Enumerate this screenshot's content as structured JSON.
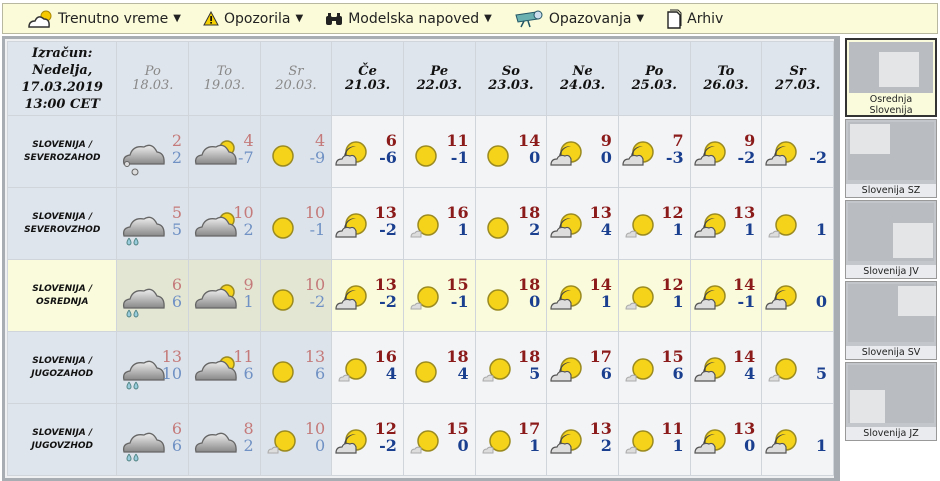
{
  "nav": [
    {
      "label": "Trenutno vreme",
      "icon": "cloud-sun-icon",
      "dropdown": true
    },
    {
      "label": "Opozorila",
      "icon": "warning-icon",
      "dropdown": true
    },
    {
      "label": "Modelska napoved",
      "icon": "binoculars-icon",
      "dropdown": true
    },
    {
      "label": "Opazovanja",
      "icon": "telescope-icon",
      "dropdown": true
    },
    {
      "label": "Arhiv",
      "icon": "document-icon",
      "dropdown": false
    }
  ],
  "calc": {
    "line1": "Izračun:",
    "line2": "Nedelja,",
    "line3": "17.03.2019",
    "line4": "13:00 CET"
  },
  "days": [
    {
      "day": "Po",
      "date": "18.03.",
      "past": true
    },
    {
      "day": "To",
      "date": "19.03.",
      "past": true
    },
    {
      "day": "Sr",
      "date": "20.03.",
      "past": true
    },
    {
      "day": "Če",
      "date": "21.03.",
      "past": false
    },
    {
      "day": "Pe",
      "date": "22.03.",
      "past": false
    },
    {
      "day": "So",
      "date": "23.03.",
      "past": false
    },
    {
      "day": "Ne",
      "date": "24.03.",
      "past": false
    },
    {
      "day": "Po",
      "date": "25.03.",
      "past": false
    },
    {
      "day": "To",
      "date": "26.03.",
      "past": false
    },
    {
      "day": "Sr",
      "date": "27.03.",
      "past": false
    }
  ],
  "rows": [
    {
      "line1": "SLOVENIJA /",
      "line2": "SEVEROZAHOD",
      "highlight": false,
      "cells": [
        {
          "icon": "cloud-snow",
          "max": "2",
          "min": "2"
        },
        {
          "icon": "cloud-sun",
          "max": "4",
          "min": "-7"
        },
        {
          "icon": "sun",
          "max": "4",
          "min": "-9"
        },
        {
          "icon": "partly-cloudy",
          "max": "6",
          "min": "-6"
        },
        {
          "icon": "sun",
          "max": "11",
          "min": "-1"
        },
        {
          "icon": "sun",
          "max": "14",
          "min": "0"
        },
        {
          "icon": "partly-cloudy",
          "max": "9",
          "min": "0"
        },
        {
          "icon": "partly-cloudy",
          "max": "7",
          "min": "-3"
        },
        {
          "icon": "partly-cloudy",
          "max": "9",
          "min": "-2"
        },
        {
          "icon": "partly-cloudy",
          "max": "",
          "min": "-2"
        }
      ]
    },
    {
      "line1": "SLOVENIJA /",
      "line2": "SEVEROVZHOD",
      "highlight": false,
      "cells": [
        {
          "icon": "cloud-rain",
          "max": "5",
          "min": "5"
        },
        {
          "icon": "cloud-sun",
          "max": "10",
          "min": "2"
        },
        {
          "icon": "sun",
          "max": "10",
          "min": "-1"
        },
        {
          "icon": "partly-cloudy",
          "max": "13",
          "min": "-2"
        },
        {
          "icon": "mostly-sunny",
          "max": "16",
          "min": "1"
        },
        {
          "icon": "sun",
          "max": "18",
          "min": "2"
        },
        {
          "icon": "partly-cloudy",
          "max": "13",
          "min": "4"
        },
        {
          "icon": "mostly-sunny",
          "max": "12",
          "min": "1"
        },
        {
          "icon": "partly-cloudy",
          "max": "13",
          "min": "1"
        },
        {
          "icon": "mostly-sunny",
          "max": "",
          "min": "1"
        }
      ]
    },
    {
      "line1": "SLOVENIJA /",
      "line2": "OSREDNJA",
      "highlight": true,
      "cells": [
        {
          "icon": "cloud-rain",
          "max": "6",
          "min": "6"
        },
        {
          "icon": "cloud-sun",
          "max": "9",
          "min": "1"
        },
        {
          "icon": "sun",
          "max": "10",
          "min": "-2"
        },
        {
          "icon": "partly-cloudy",
          "max": "13",
          "min": "-2"
        },
        {
          "icon": "mostly-sunny",
          "max": "15",
          "min": "-1"
        },
        {
          "icon": "sun",
          "max": "18",
          "min": "0"
        },
        {
          "icon": "partly-cloudy",
          "max": "14",
          "min": "1"
        },
        {
          "icon": "mostly-sunny",
          "max": "12",
          "min": "1"
        },
        {
          "icon": "partly-cloudy",
          "max": "14",
          "min": "-1"
        },
        {
          "icon": "partly-cloudy",
          "max": "",
          "min": "0"
        }
      ]
    },
    {
      "line1": "SLOVENIJA /",
      "line2": "JUGOZAHOD",
      "highlight": false,
      "cells": [
        {
          "icon": "cloud-rain",
          "max": "13",
          "min": "10"
        },
        {
          "icon": "cloud-sun",
          "max": "11",
          "min": "6"
        },
        {
          "icon": "sun",
          "max": "13",
          "min": "6"
        },
        {
          "icon": "mostly-sunny",
          "max": "16",
          "min": "4"
        },
        {
          "icon": "sun",
          "max": "18",
          "min": "4"
        },
        {
          "icon": "mostly-sunny",
          "max": "18",
          "min": "5"
        },
        {
          "icon": "partly-cloudy",
          "max": "17",
          "min": "6"
        },
        {
          "icon": "mostly-sunny",
          "max": "15",
          "min": "6"
        },
        {
          "icon": "partly-cloudy",
          "max": "14",
          "min": "4"
        },
        {
          "icon": "mostly-sunny",
          "max": "",
          "min": "5"
        }
      ]
    },
    {
      "line1": "SLOVENIJA /",
      "line2": "JUGOVZHOD",
      "highlight": false,
      "cells": [
        {
          "icon": "cloud-rain",
          "max": "6",
          "min": "6"
        },
        {
          "icon": "cloud",
          "max": "8",
          "min": "2"
        },
        {
          "icon": "mostly-sunny",
          "max": "10",
          "min": "0"
        },
        {
          "icon": "partly-cloudy",
          "max": "12",
          "min": "-2"
        },
        {
          "icon": "mostly-sunny",
          "max": "15",
          "min": "0"
        },
        {
          "icon": "mostly-sunny",
          "max": "17",
          "min": "1"
        },
        {
          "icon": "partly-cloudy",
          "max": "13",
          "min": "2"
        },
        {
          "icon": "mostly-sunny",
          "max": "11",
          "min": "1"
        },
        {
          "icon": "partly-cloudy",
          "max": "13",
          "min": "0"
        },
        {
          "icon": "partly-cloudy",
          "max": "",
          "min": "1"
        }
      ]
    }
  ],
  "regions": [
    {
      "label": "Osrednja Slovenija",
      "active": true
    },
    {
      "label": "Slovenija SZ",
      "active": false
    },
    {
      "label": "Slovenija JV",
      "active": false
    },
    {
      "label": "Slovenija SV",
      "active": false
    },
    {
      "label": "Slovenija JZ",
      "active": false
    }
  ],
  "colors": {
    "nav_bg": "#fbfbd9",
    "highlight_row": "#f9fbdc",
    "past_bg": "#dde3ea",
    "max_temp": "#8b1a1a",
    "min_temp": "#1a3f8f"
  }
}
